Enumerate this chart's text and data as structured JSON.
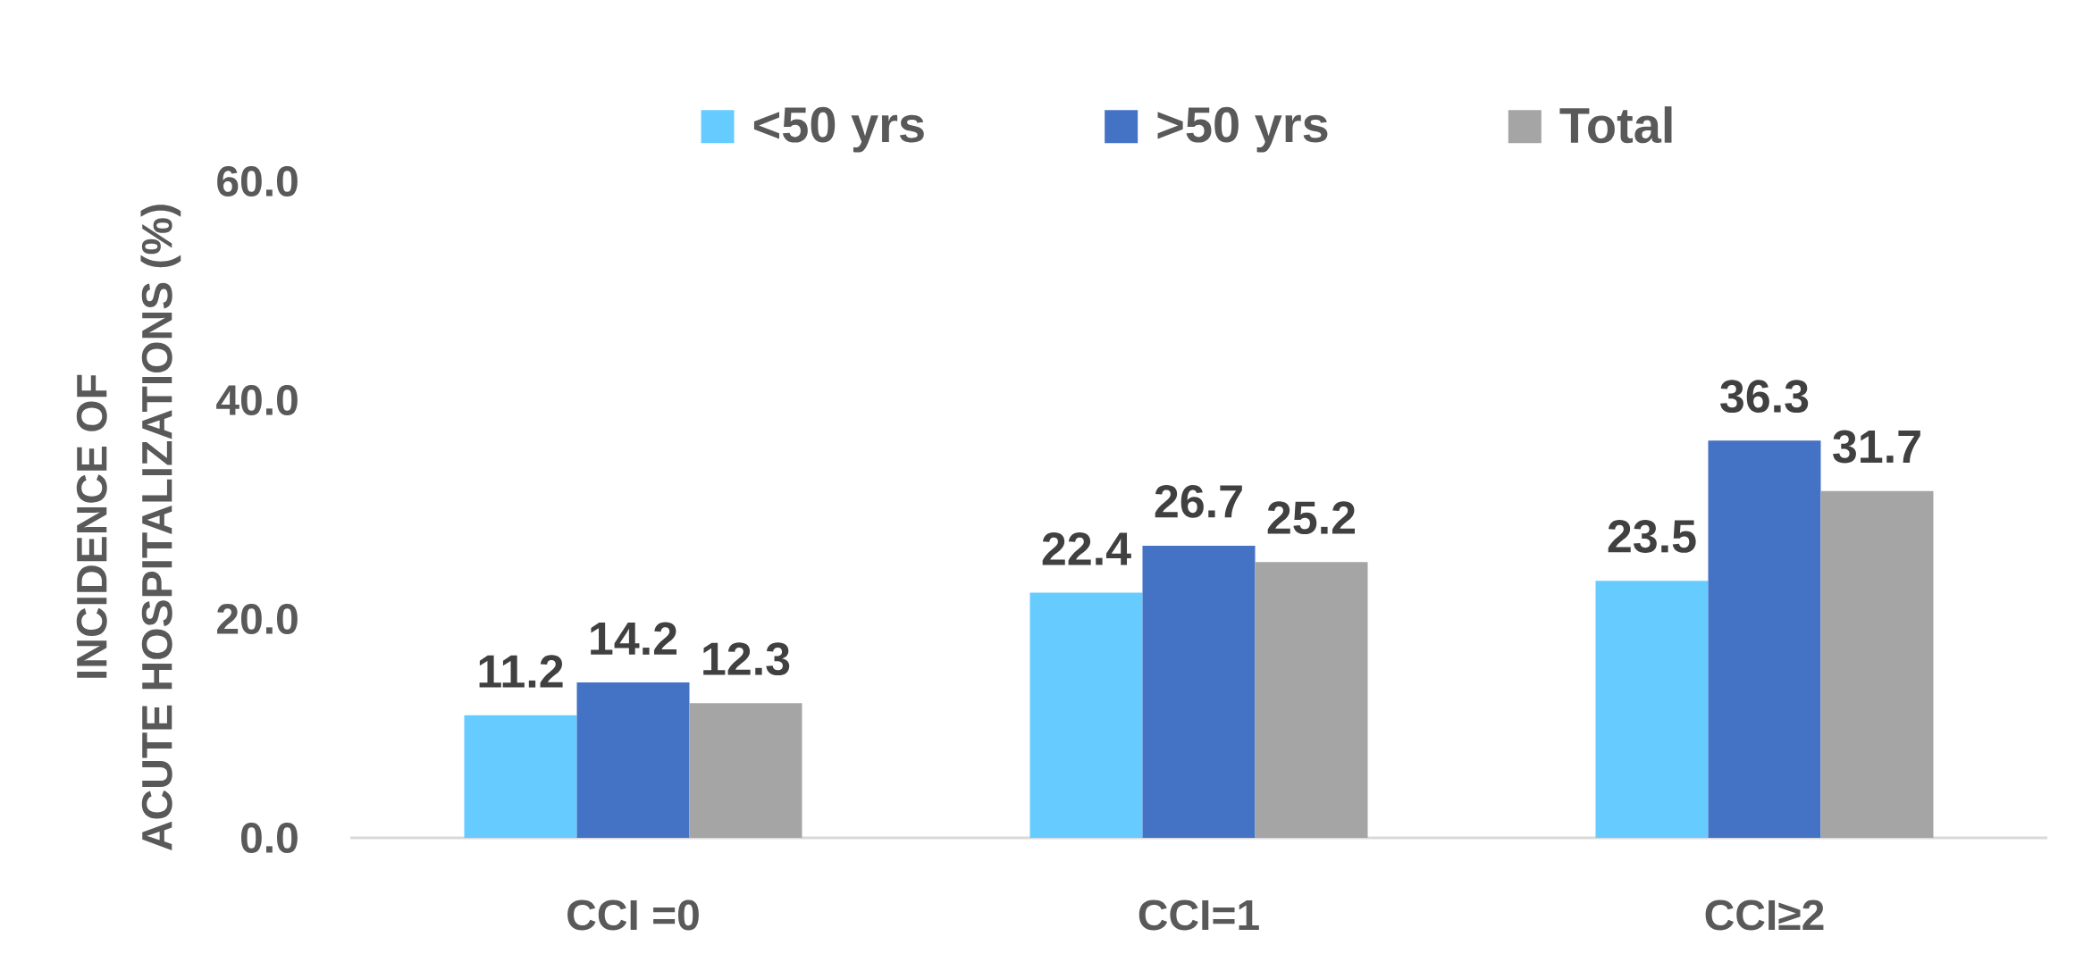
{
  "chart_data": {
    "type": "bar",
    "ylabel": "INCIDENCE OF ACUTE HOSPITALIZATIONS (%)",
    "categories": [
      "CCI =0",
      "CCI=1",
      "CCI≥2"
    ],
    "series": [
      {
        "name": "<50 yrs",
        "color": "#66ccff",
        "values": [
          11.2,
          22.4,
          23.5
        ]
      },
      {
        "name": ">50 yrs",
        "color": "#4472c4",
        "values": [
          14.2,
          26.7,
          36.3
        ]
      },
      {
        "name": "Total",
        "color": "#a5a5a5",
        "values": [
          12.3,
          25.2,
          31.7
        ]
      }
    ],
    "ylim": [
      0,
      60
    ],
    "yticks": [
      {
        "value": 0,
        "label": "0.0"
      },
      {
        "value": 20,
        "label": "20.0"
      },
      {
        "value": 40,
        "label": "40.0"
      },
      {
        "value": 60,
        "label": "60.0"
      }
    ],
    "legend": "top",
    "data_labels": true
  }
}
